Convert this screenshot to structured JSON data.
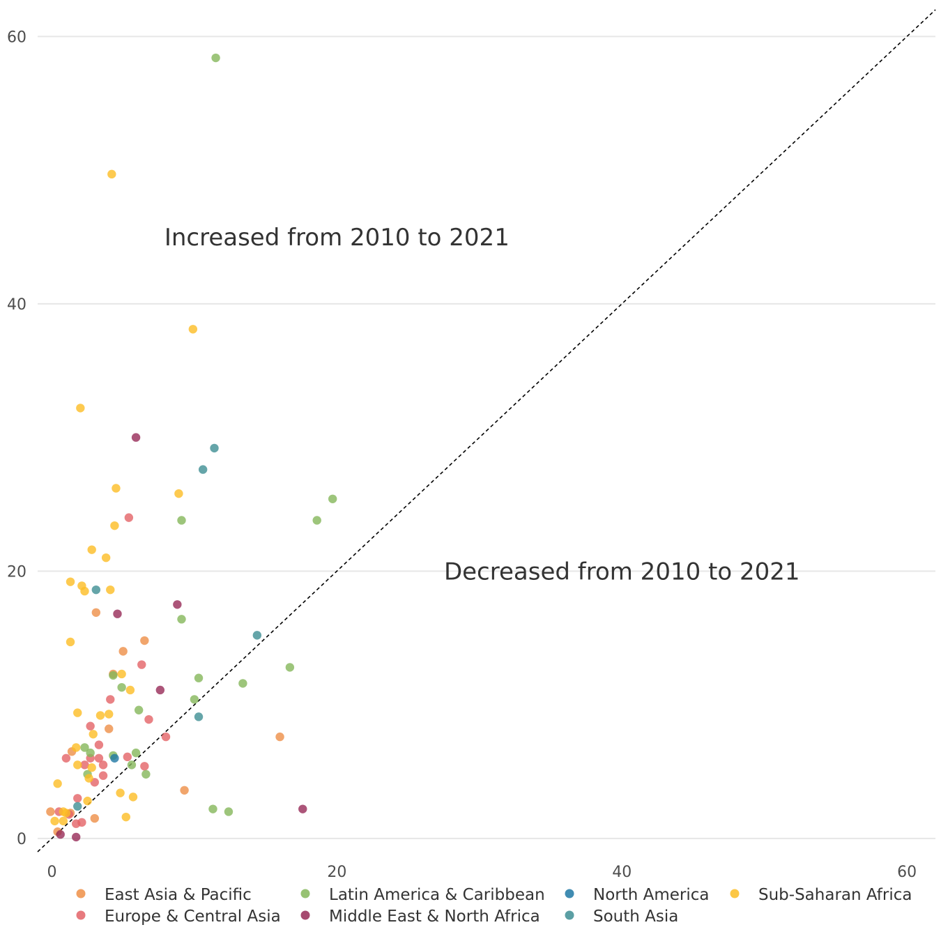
{
  "chart_data": {
    "type": "scatter",
    "title": "",
    "xlabel": "",
    "ylabel": "",
    "xlim": [
      -1,
      62
    ],
    "ylim": [
      -1,
      62
    ],
    "xticks": [
      0,
      20,
      40,
      60
    ],
    "yticks": [
      0,
      20,
      40,
      60
    ],
    "grid": "horizontal",
    "reference_line": "y = x",
    "legend_position": "bottom",
    "annotations": [
      {
        "id": "increased",
        "text": "Increased from 2010 to 2021",
        "x": 20,
        "y": 45
      },
      {
        "id": "decreased",
        "text": "Decreased from 2010 to 2021",
        "x": 40,
        "y": 20
      }
    ],
    "series": [
      {
        "name": "East Asia & Pacific",
        "color": "#ee8f47",
        "points": [
          [
            3.1,
            16.9
          ],
          [
            5.0,
            14.0
          ],
          [
            6.5,
            14.8
          ],
          [
            4.3,
            12.3
          ],
          [
            4.0,
            8.2
          ],
          [
            3.0,
            1.5
          ],
          [
            9.3,
            3.6
          ],
          [
            16.0,
            7.6
          ],
          [
            -0.1,
            2.0
          ],
          [
            0.4,
            0.5
          ],
          [
            1.3,
            1.9
          ],
          [
            1.4,
            6.5
          ]
        ]
      },
      {
        "name": "Europe & Central Asia",
        "color": "#e36367",
        "points": [
          [
            5.4,
            24.0
          ],
          [
            6.3,
            13.0
          ],
          [
            4.1,
            10.4
          ],
          [
            6.8,
            8.9
          ],
          [
            2.7,
            8.4
          ],
          [
            3.3,
            7.0
          ],
          [
            8.0,
            7.6
          ],
          [
            1.0,
            6.0
          ],
          [
            2.7,
            6.0
          ],
          [
            3.3,
            6.0
          ],
          [
            5.3,
            6.1
          ],
          [
            2.3,
            5.5
          ],
          [
            3.6,
            5.5
          ],
          [
            6.5,
            5.4
          ],
          [
            3.6,
            4.7
          ],
          [
            3.0,
            4.2
          ],
          [
            1.8,
            3.0
          ],
          [
            2.1,
            1.2
          ],
          [
            1.7,
            1.1
          ],
          [
            0.5,
            2.0
          ],
          [
            1.2,
            1.8
          ]
        ]
      },
      {
        "name": "Latin America & Caribbean",
        "color": "#85b75a",
        "points": [
          [
            11.5,
            58.4
          ],
          [
            19.7,
            25.4
          ],
          [
            18.6,
            23.8
          ],
          [
            9.1,
            23.8
          ],
          [
            9.1,
            16.4
          ],
          [
            16.7,
            12.8
          ],
          [
            10.3,
            12.0
          ],
          [
            13.4,
            11.6
          ],
          [
            10.0,
            10.4
          ],
          [
            4.9,
            11.3
          ],
          [
            4.3,
            12.2
          ],
          [
            6.1,
            9.6
          ],
          [
            2.3,
            6.8
          ],
          [
            2.7,
            6.4
          ],
          [
            4.3,
            6.2
          ],
          [
            5.9,
            6.4
          ],
          [
            5.6,
            5.5
          ],
          [
            2.5,
            4.8
          ],
          [
            6.6,
            4.8
          ],
          [
            11.3,
            2.2
          ],
          [
            12.4,
            2.0
          ]
        ]
      },
      {
        "name": "Middle East & North Africa",
        "color": "#972a57",
        "points": [
          [
            5.9,
            30.0
          ],
          [
            8.8,
            17.5
          ],
          [
            4.6,
            16.8
          ],
          [
            7.6,
            11.1
          ],
          [
            17.6,
            2.2
          ],
          [
            1.7,
            0.1
          ],
          [
            0.6,
            0.3
          ]
        ]
      },
      {
        "name": "North America",
        "color": "#1f78a4",
        "points": [
          [
            4.4,
            6.0
          ]
        ]
      },
      {
        "name": "South Asia",
        "color": "#3e8e94",
        "points": [
          [
            11.4,
            29.2
          ],
          [
            10.6,
            27.6
          ],
          [
            3.1,
            18.6
          ],
          [
            14.4,
            15.2
          ],
          [
            10.3,
            9.1
          ],
          [
            1.8,
            2.4
          ]
        ]
      },
      {
        "name": "Sub-Saharan Africa",
        "color": "#fcbd24",
        "points": [
          [
            4.2,
            49.7
          ],
          [
            9.9,
            38.1
          ],
          [
            2.0,
            32.2
          ],
          [
            4.5,
            26.2
          ],
          [
            8.9,
            25.8
          ],
          [
            4.4,
            23.4
          ],
          [
            2.8,
            21.6
          ],
          [
            3.8,
            21.0
          ],
          [
            1.3,
            19.2
          ],
          [
            2.1,
            18.9
          ],
          [
            2.3,
            18.5
          ],
          [
            4.1,
            18.6
          ],
          [
            1.3,
            14.7
          ],
          [
            4.9,
            12.3
          ],
          [
            5.5,
            11.1
          ],
          [
            1.8,
            9.4
          ],
          [
            3.4,
            9.2
          ],
          [
            4.0,
            9.3
          ],
          [
            2.9,
            7.8
          ],
          [
            1.7,
            6.8
          ],
          [
            1.8,
            5.5
          ],
          [
            2.8,
            5.3
          ],
          [
            2.6,
            4.5
          ],
          [
            0.4,
            4.1
          ],
          [
            4.8,
            3.4
          ],
          [
            5.7,
            3.1
          ],
          [
            2.5,
            2.8
          ],
          [
            5.2,
            1.6
          ],
          [
            0.2,
            1.3
          ],
          [
            0.8,
            1.3
          ],
          [
            0.8,
            2.0
          ],
          [
            1.0,
            1.9
          ]
        ]
      }
    ]
  }
}
